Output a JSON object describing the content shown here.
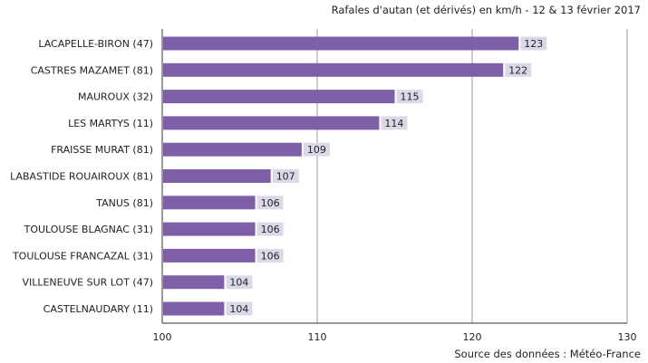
{
  "chart_data": {
    "type": "bar",
    "orientation": "horizontal",
    "title": "Rafales d'autan (et dérivés) en km/h - 12 & 13 février 2017",
    "source": "Source des données : Météo-France",
    "xlabel": "",
    "ylabel": "",
    "xlim": [
      100,
      130
    ],
    "xticks": [
      100,
      110,
      120,
      130
    ],
    "grid": true,
    "legend": "none",
    "colors": {
      "bar": "#7f60a8",
      "label_bg": "#ddd8e8",
      "grid": "#999999",
      "axis": "#333333"
    },
    "categories": [
      "LACAPELLE-BIRON (47)",
      "CASTRES MAZAMET (81)",
      "MAUROUX (32)",
      "LES MARTYS (11)",
      "FRAISSE MURAT (81)",
      "LABASTIDE ROUAIROUX (81)",
      "TANUS (81)",
      "TOULOUSE BLAGNAC (31)",
      "TOULOUSE FRANCAZAL (31)",
      "VILLENEUVE SUR LOT (47)",
      "CASTELNAUDARY (11)"
    ],
    "values": [
      123,
      122,
      115,
      114,
      109,
      107,
      106,
      106,
      106,
      104,
      104
    ]
  }
}
